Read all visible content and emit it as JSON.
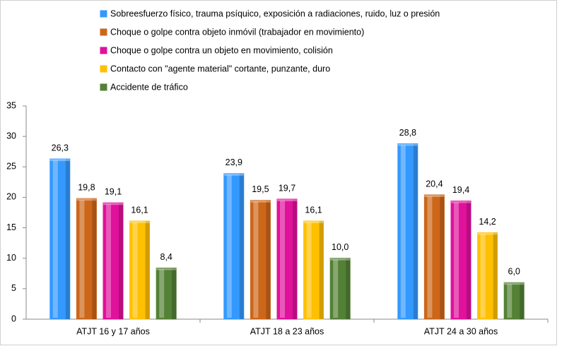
{
  "chart_data": {
    "type": "bar",
    "categories": [
      "ATJT 16 y 17 años",
      "ATJT 18 a 23 años",
      "ATJT 24 a 30 años"
    ],
    "series": [
      {
        "name": "Sobreesfuerzo físico, trauma psíquico, exposición a radiaciones, ruido, luz o presión",
        "color": "#3399ff",
        "values": [
          26.3,
          23.9,
          28.8
        ],
        "value_labels": [
          "26,3",
          "23,9",
          "28,8"
        ]
      },
      {
        "name": "Choque o golpe contra objeto inmóvil  (trabajador en movimiento)",
        "color": "#cc6619",
        "values": [
          19.8,
          19.5,
          20.4
        ],
        "value_labels": [
          "19,8",
          "19,5",
          "20,4"
        ]
      },
      {
        "name": "Choque o golpe contra un objeto en movimiento, colisión",
        "color": "#e0119b",
        "values": [
          19.1,
          19.7,
          19.4
        ],
        "value_labels": [
          "19,1",
          "19,7",
          "19,4"
        ]
      },
      {
        "name": "Contacto con \"agente material\" cortante, punzante, duro",
        "color": "#ffc000",
        "values": [
          16.1,
          16.1,
          14.2
        ],
        "value_labels": [
          "16,1",
          "16,1",
          "14,2"
        ]
      },
      {
        "name": "Accidente de tráfico",
        "color": "#538135",
        "values": [
          8.4,
          10.0,
          6.0
        ],
        "value_labels": [
          "8,4",
          "10,0",
          "6,0"
        ]
      }
    ],
    "ylim": [
      0,
      35
    ],
    "yticks": [
      0,
      5,
      10,
      15,
      20,
      25,
      30,
      35
    ],
    "grid": false
  }
}
